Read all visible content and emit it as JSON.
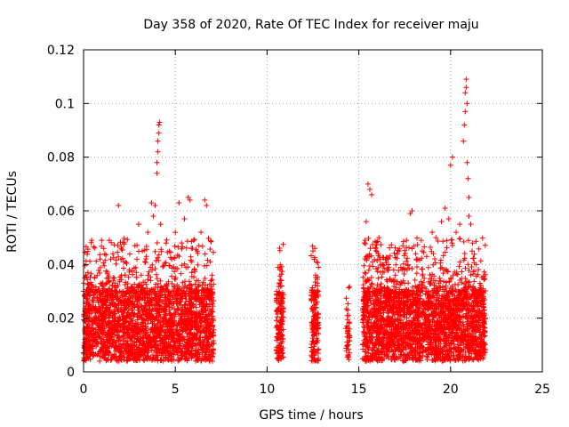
{
  "chart_data": {
    "type": "scatter",
    "title": "Day 358 of 2020, Rate Of TEC Index for receiver maju",
    "xlabel": "GPS time / hours",
    "ylabel": "ROTI / TECUs",
    "xlim": [
      0,
      25
    ],
    "ylim": [
      0,
      0.12
    ],
    "x_ticks": [
      0,
      5,
      10,
      15,
      20,
      25
    ],
    "x_tick_labels": [
      "0",
      "5",
      "10",
      "15",
      "20",
      "25"
    ],
    "y_ticks": [
      0,
      0.02,
      0.04,
      0.06,
      0.08,
      0.1,
      0.12
    ],
    "y_tick_labels": [
      "0",
      "0.02",
      "0.04",
      "0.06",
      "0.08",
      "0.1",
      "0.12"
    ],
    "grid": true,
    "marker": "+",
    "color": "#ff0000",
    "series": [
      {
        "name": "ROTI",
        "clusters": [
          {
            "x_range": [
              0.0,
              7.1
            ],
            "base_range": [
              0.004,
              0.03
            ],
            "count": 2600
          },
          {
            "x_range": [
              10.5,
              10.9
            ],
            "base_range": [
              0.004,
              0.03
            ],
            "count": 160
          },
          {
            "x_range": [
              12.4,
              12.8
            ],
            "base_range": [
              0.004,
              0.03
            ],
            "count": 160
          },
          {
            "x_range": [
              14.3,
              14.5
            ],
            "base_range": [
              0.004,
              0.023
            ],
            "count": 40
          },
          {
            "x_range": [
              15.2,
              21.9
            ],
            "base_range": [
              0.004,
              0.03
            ],
            "count": 2600
          }
        ],
        "points": [
          {
            "x": 0.3,
            "y": 0.031
          },
          {
            "x": 0.6,
            "y": 0.035
          },
          {
            "x": 0.9,
            "y": 0.042
          },
          {
            "x": 1.1,
            "y": 0.046
          },
          {
            "x": 1.4,
            "y": 0.049
          },
          {
            "x": 1.6,
            "y": 0.044
          },
          {
            "x": 1.9,
            "y": 0.062
          },
          {
            "x": 2.2,
            "y": 0.041
          },
          {
            "x": 2.5,
            "y": 0.038
          },
          {
            "x": 2.8,
            "y": 0.047
          },
          {
            "x": 3.0,
            "y": 0.055
          },
          {
            "x": 3.2,
            "y": 0.045
          },
          {
            "x": 3.5,
            "y": 0.052
          },
          {
            "x": 3.7,
            "y": 0.063
          },
          {
            "x": 3.8,
            "y": 0.058
          },
          {
            "x": 3.9,
            "y": 0.062
          },
          {
            "x": 4.0,
            "y": 0.074
          },
          {
            "x": 4.0,
            "y": 0.078
          },
          {
            "x": 4.05,
            "y": 0.082
          },
          {
            "x": 4.05,
            "y": 0.086
          },
          {
            "x": 4.1,
            "y": 0.089
          },
          {
            "x": 4.1,
            "y": 0.092
          },
          {
            "x": 4.15,
            "y": 0.093
          },
          {
            "x": 4.2,
            "y": 0.055
          },
          {
            "x": 4.5,
            "y": 0.048
          },
          {
            "x": 4.8,
            "y": 0.042
          },
          {
            "x": 5.0,
            "y": 0.052
          },
          {
            "x": 5.2,
            "y": 0.063
          },
          {
            "x": 5.5,
            "y": 0.057
          },
          {
            "x": 5.7,
            "y": 0.065
          },
          {
            "x": 5.8,
            "y": 0.064
          },
          {
            "x": 6.0,
            "y": 0.049
          },
          {
            "x": 6.2,
            "y": 0.045
          },
          {
            "x": 6.4,
            "y": 0.052
          },
          {
            "x": 6.6,
            "y": 0.064
          },
          {
            "x": 6.7,
            "y": 0.062
          },
          {
            "x": 6.9,
            "y": 0.041
          },
          {
            "x": 7.0,
            "y": 0.036
          },
          {
            "x": 10.6,
            "y": 0.039
          },
          {
            "x": 10.7,
            "y": 0.038
          },
          {
            "x": 10.8,
            "y": 0.032
          },
          {
            "x": 12.5,
            "y": 0.045
          },
          {
            "x": 12.6,
            "y": 0.046
          },
          {
            "x": 12.7,
            "y": 0.041
          },
          {
            "x": 14.4,
            "y": 0.023
          },
          {
            "x": 14.45,
            "y": 0.021
          },
          {
            "x": 15.4,
            "y": 0.056
          },
          {
            "x": 15.5,
            "y": 0.07
          },
          {
            "x": 15.6,
            "y": 0.068
          },
          {
            "x": 15.7,
            "y": 0.066
          },
          {
            "x": 15.9,
            "y": 0.046
          },
          {
            "x": 16.1,
            "y": 0.05
          },
          {
            "x": 16.3,
            "y": 0.04
          },
          {
            "x": 16.6,
            "y": 0.042
          },
          {
            "x": 16.9,
            "y": 0.038
          },
          {
            "x": 17.2,
            "y": 0.045
          },
          {
            "x": 17.4,
            "y": 0.047
          },
          {
            "x": 17.6,
            "y": 0.049
          },
          {
            "x": 17.8,
            "y": 0.059
          },
          {
            "x": 17.9,
            "y": 0.06
          },
          {
            "x": 18.1,
            "y": 0.044
          },
          {
            "x": 18.4,
            "y": 0.049
          },
          {
            "x": 18.7,
            "y": 0.043
          },
          {
            "x": 19.0,
            "y": 0.052
          },
          {
            "x": 19.2,
            "y": 0.05
          },
          {
            "x": 19.5,
            "y": 0.056
          },
          {
            "x": 19.7,
            "y": 0.061
          },
          {
            "x": 19.9,
            "y": 0.057
          },
          {
            "x": 20.0,
            "y": 0.077
          },
          {
            "x": 20.1,
            "y": 0.08
          },
          {
            "x": 20.3,
            "y": 0.052
          },
          {
            "x": 20.5,
            "y": 0.055
          },
          {
            "x": 20.7,
            "y": 0.086
          },
          {
            "x": 20.75,
            "y": 0.092
          },
          {
            "x": 20.8,
            "y": 0.097
          },
          {
            "x": 20.8,
            "y": 0.104
          },
          {
            "x": 20.85,
            "y": 0.109
          },
          {
            "x": 20.85,
            "y": 0.106
          },
          {
            "x": 20.9,
            "y": 0.1
          },
          {
            "x": 20.9,
            "y": 0.078
          },
          {
            "x": 20.95,
            "y": 0.072
          },
          {
            "x": 21.0,
            "y": 0.065
          },
          {
            "x": 21.0,
            "y": 0.058
          },
          {
            "x": 21.1,
            "y": 0.055
          },
          {
            "x": 21.2,
            "y": 0.048
          },
          {
            "x": 21.4,
            "y": 0.04
          },
          {
            "x": 21.6,
            "y": 0.033
          },
          {
            "x": 21.8,
            "y": 0.028
          }
        ]
      }
    ]
  }
}
